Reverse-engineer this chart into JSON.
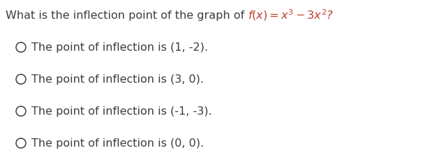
{
  "background_color": "#ffffff",
  "question_prefix": "What is the inflection point of the graph of ",
  "function_latex": "$f(x) = x^3 - 3x^2$?",
  "options": [
    "The point of inflection is (1, -2).",
    "The point of inflection is (3, 0).",
    "The point of inflection is (-1, -3).",
    "The point of inflection is (0, 0)."
  ],
  "question_fontsize": 11.5,
  "option_fontsize": 11.5,
  "text_color": "#3d3d3d",
  "math_color": "#c0392b",
  "fig_width": 6.06,
  "fig_height": 2.36,
  "dpi": 100
}
